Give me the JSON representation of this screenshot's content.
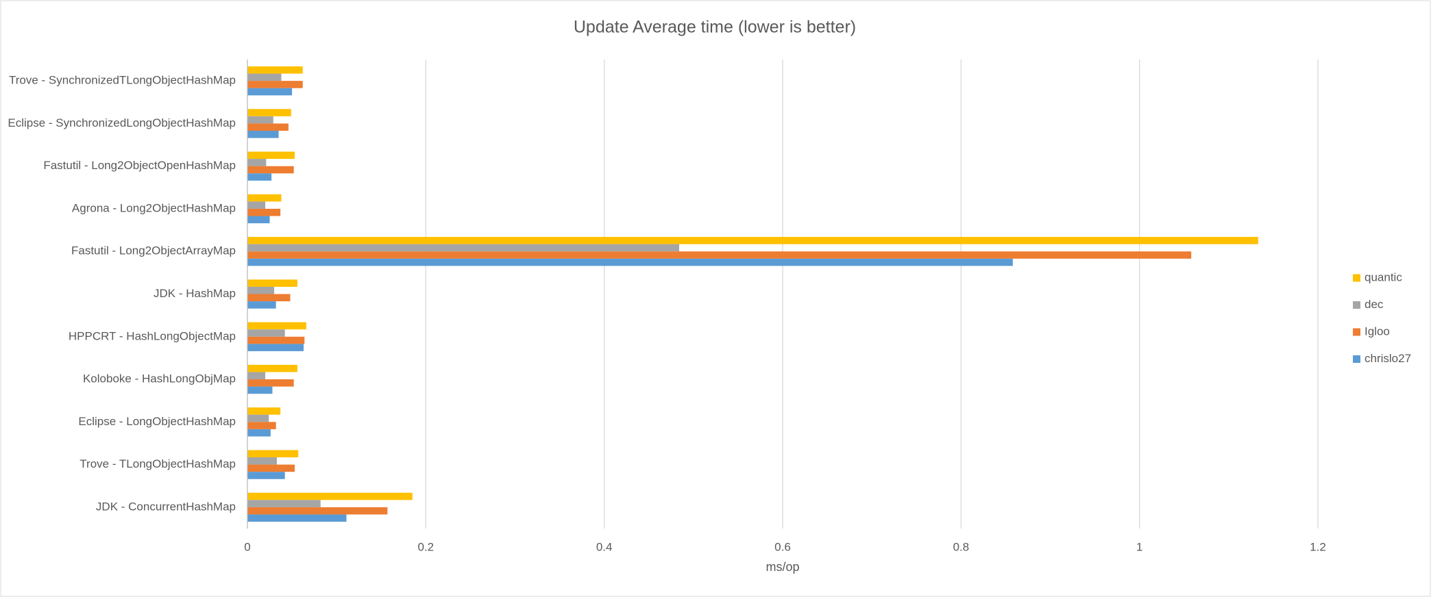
{
  "chart_data": {
    "type": "hbar",
    "title": "Update Average time (lower is better)",
    "x_label": "ms/op",
    "categories": [
      "Trove - SynchronizedTLongObjectHashMap",
      "Eclipse - SynchronizedLongObjectHashMap",
      "Fastutil - Long2ObjectOpenHashMap",
      "Agrona - Long2ObjectHashMap",
      "Fastutil - Long2ObjectArrayMap",
      "JDK - HashMap",
      "HPPCRT - HashLongObjectMap",
      "Koloboke - HashLongObjMap",
      "Eclipse - LongObjectHashMap",
      "Trove - TLongObjectHashMap",
      "JDK - ConcurrentHashMap"
    ],
    "series": [
      {
        "name": "quantic",
        "color": "#ffc000",
        "values": [
          0.062,
          0.049,
          0.053,
          0.038,
          1.133,
          0.056,
          0.066,
          0.056,
          0.037,
          0.057,
          0.185
        ]
      },
      {
        "name": "dec",
        "color": "#a5a5a5",
        "values": [
          0.038,
          0.029,
          0.021,
          0.02,
          0.484,
          0.03,
          0.042,
          0.02,
          0.024,
          0.033,
          0.082
        ]
      },
      {
        "name": "Igloo",
        "color": "#ed7d31",
        "values": [
          0.062,
          0.046,
          0.052,
          0.037,
          1.058,
          0.048,
          0.064,
          0.052,
          0.032,
          0.053,
          0.157
        ]
      },
      {
        "name": "chrislo27",
        "color": "#5b9bd5",
        "values": [
          0.05,
          0.035,
          0.027,
          0.025,
          0.858,
          0.032,
          0.063,
          0.028,
          0.026,
          0.042,
          0.111
        ]
      }
    ],
    "xlim": [
      0,
      1.2
    ],
    "xticks": [
      0,
      0.2,
      0.4,
      0.6,
      0.8,
      1,
      1.2
    ],
    "grid": true,
    "legend": "right"
  }
}
